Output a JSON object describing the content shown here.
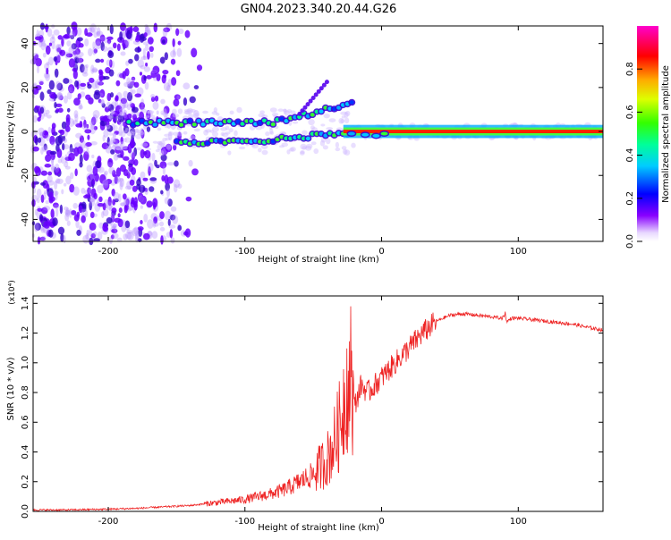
{
  "title": "GN04.2023.340.20.44.G26",
  "chart_data": [
    {
      "type": "heatmap",
      "xlabel": "Height of straight line (km)",
      "ylabel": "Frequency (Hz)",
      "xlim": [
        -255,
        162
      ],
      "ylim": [
        -50,
        48
      ],
      "xticks": [
        -200,
        -100,
        0,
        100
      ],
      "yticks": [
        -40,
        -20,
        0,
        20,
        40
      ],
      "colorbar": {
        "label": "Normalized spectral amplitude",
        "range": [
          0,
          1
        ],
        "ticks": [
          0.0,
          0.2,
          0.4,
          0.6,
          0.8
        ]
      },
      "features": {
        "noise_region_x": [
          -255,
          -130
        ],
        "carrier_line_freq": 0,
        "carrier_steady_from_x": -10,
        "upper_branch_peak": {
          "x": -38,
          "freq": 24
        }
      }
    },
    {
      "type": "line",
      "xlabel": "Height of straight line (km)",
      "ylabel": "SNR (10 * v/v)",
      "multiplier": "(x10⁴)",
      "xlim": [
        -255,
        162
      ],
      "ylim": [
        0,
        1.45
      ],
      "xticks": [
        -200,
        -100,
        0,
        100
      ],
      "yticks": [
        0.0,
        0.2,
        0.4,
        0.6,
        0.8,
        1.0,
        1.2,
        1.4
      ],
      "ytick_labels": [
        "0.0",
        "0.2",
        "0.4",
        "0.6",
        "0.8",
        "1.0",
        "1.2",
        "1.4"
      ],
      "series": [
        {
          "color": "#ee2222",
          "x": [
            -255,
            -230,
            -200,
            -180,
            -160,
            -140,
            -120,
            -110,
            -100,
            -90,
            -80,
            -70,
            -60,
            -50,
            -45,
            -40,
            -35,
            -30,
            -27,
            -24,
            -20,
            -15,
            -10,
            -5,
            0,
            5,
            10,
            15,
            20,
            25,
            30,
            40,
            50,
            60,
            70,
            80,
            88,
            90,
            92,
            95,
            100,
            110,
            120,
            130,
            140,
            150,
            162
          ],
          "y": [
            0.01,
            0.01,
            0.015,
            0.02,
            0.03,
            0.04,
            0.06,
            0.07,
            0.08,
            0.1,
            0.12,
            0.15,
            0.2,
            0.25,
            0.3,
            0.35,
            0.45,
            0.6,
            0.8,
            0.9,
            0.7,
            0.85,
            0.8,
            0.85,
            0.9,
            0.95,
            1.0,
            1.05,
            1.1,
            1.15,
            1.2,
            1.28,
            1.32,
            1.33,
            1.32,
            1.31,
            1.3,
            1.32,
            1.28,
            1.3,
            1.3,
            1.29,
            1.28,
            1.27,
            1.26,
            1.24,
            1.22
          ]
        }
      ]
    }
  ]
}
